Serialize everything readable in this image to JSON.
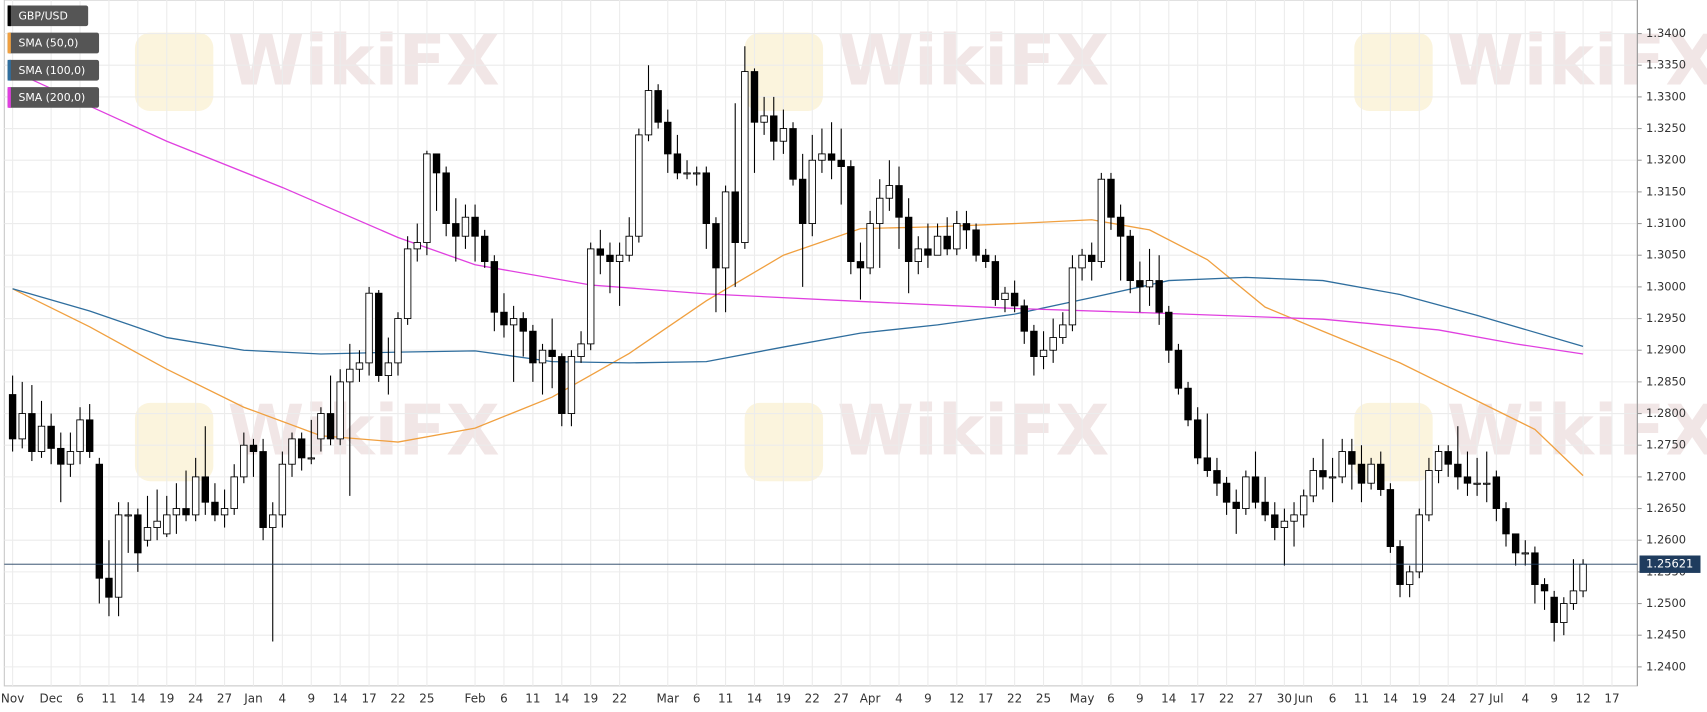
{
  "chart_data": {
    "type": "candlestick",
    "watermark": "WikiFX",
    "grid": true,
    "ylim": [
      1.237,
      1.3453
    ],
    "yticks": [
      {
        "value": 1.24,
        "label": "1.2400"
      },
      {
        "value": 1.245,
        "label": "1.2450"
      },
      {
        "value": 1.25,
        "label": "1.2500"
      },
      {
        "value": 1.255,
        "label": "1.2550"
      },
      {
        "value": 1.26,
        "label": "1.2600"
      },
      {
        "value": 1.265,
        "label": "1.2650"
      },
      {
        "value": 1.27,
        "label": "1.2700"
      },
      {
        "value": 1.275,
        "label": "1.2750"
      },
      {
        "value": 1.28,
        "label": "1.2800"
      },
      {
        "value": 1.285,
        "label": "1.2850"
      },
      {
        "value": 1.29,
        "label": "1.2900"
      },
      {
        "value": 1.295,
        "label": "1.2950"
      },
      {
        "value": 1.3,
        "label": "1.3000"
      },
      {
        "value": 1.305,
        "label": "1.3050"
      },
      {
        "value": 1.31,
        "label": "1.3100"
      },
      {
        "value": 1.315,
        "label": "1.3150"
      },
      {
        "value": 1.32,
        "label": "1.3200"
      },
      {
        "value": 1.325,
        "label": "1.3250"
      },
      {
        "value": 1.33,
        "label": "1.3300"
      },
      {
        "value": 1.335,
        "label": "1.3350"
      },
      {
        "value": 1.34,
        "label": "1.3400"
      }
    ],
    "last_price": 1.25621,
    "categories": [
      "Nov",
      null,
      null,
      null,
      "Dec",
      null,
      null,
      "6",
      null,
      null,
      "11",
      null,
      null,
      "14",
      null,
      null,
      "19",
      null,
      null,
      "24",
      null,
      null,
      "27",
      null,
      null,
      "Jan",
      null,
      null,
      "4",
      null,
      null,
      "9",
      null,
      null,
      "14",
      null,
      null,
      "17",
      null,
      null,
      "22",
      null,
      null,
      "25",
      null,
      null,
      null,
      null,
      "Feb",
      null,
      null,
      "6",
      null,
      null,
      "11",
      null,
      null,
      "14",
      null,
      null,
      "19",
      null,
      null,
      "22",
      null,
      null,
      null,
      null,
      "Mar",
      null,
      null,
      "6",
      null,
      null,
      "11",
      null,
      null,
      "14",
      null,
      null,
      "19",
      null,
      null,
      "22",
      null,
      null,
      "27",
      null,
      null,
      "Apr",
      null,
      null,
      "4",
      null,
      null,
      "9",
      null,
      null,
      "12",
      null,
      null,
      "17",
      null,
      null,
      "22",
      null,
      null,
      "25",
      null,
      null,
      null,
      "May",
      null,
      null,
      "6",
      null,
      null,
      "9",
      null,
      null,
      "14",
      null,
      null,
      "17",
      null,
      null,
      "22",
      null,
      null,
      "27",
      null,
      null,
      "30",
      null,
      "Jun",
      null,
      null,
      "6",
      null,
      null,
      "11",
      null,
      null,
      "14",
      null,
      null,
      "19",
      null,
      null,
      "24",
      null,
      null,
      "27",
      null,
      "Jul",
      null,
      null,
      "4",
      null,
      null,
      "9",
      null,
      null,
      "12",
      null,
      null,
      "17"
    ],
    "series": [
      {
        "name": "GBP/USD",
        "color": "#000000",
        "open": [
          1.283,
          1.276,
          1.28,
          1.274,
          1.278,
          1.2745,
          1.272,
          1.274,
          1.279,
          1.272,
          1.254,
          1.251,
          1.264,
          1.264,
          1.26,
          1.262,
          1.261,
          1.264,
          1.265,
          1.264,
          1.27,
          1.266,
          1.264,
          1.265,
          1.27,
          1.275,
          1.274,
          1.262,
          1.264,
          1.272,
          1.276,
          1.273,
          1.276,
          1.28,
          1.276,
          1.285,
          1.287,
          1.288,
          1.299,
          1.286,
          1.288,
          1.295,
          1.306,
          1.307,
          1.321,
          1.318,
          1.31,
          1.308,
          1.311,
          1.308,
          1.304,
          1.296,
          1.294,
          1.295,
          1.293,
          1.288,
          1.29,
          1.289,
          1.28,
          1.289,
          1.291,
          1.306,
          1.305,
          1.304,
          1.305,
          1.308,
          1.324,
          1.331,
          1.326,
          1.321,
          1.318,
          1.318,
          1.318,
          1.31,
          1.303,
          1.315,
          1.307,
          1.334,
          1.326,
          1.327,
          1.323,
          1.325,
          1.317,
          1.31,
          1.32,
          1.321,
          1.32,
          1.319,
          1.304,
          1.303,
          1.31,
          1.314,
          1.316,
          1.311,
          1.304,
          1.306,
          1.305,
          1.308,
          1.306,
          1.31,
          1.309,
          1.305,
          1.304,
          1.298,
          1.299,
          1.297,
          1.293,
          1.289,
          1.29,
          1.292,
          1.294,
          1.303,
          1.305,
          1.304,
          1.317,
          1.311,
          1.308,
          1.301,
          1.3,
          1.301,
          1.296,
          1.29,
          1.284,
          1.279,
          1.273,
          1.271,
          1.269,
          1.266,
          1.265,
          1.27,
          1.266,
          1.264,
          1.262,
          1.263,
          1.264,
          1.267,
          1.271,
          1.27,
          1.27,
          1.274,
          1.272,
          1.269,
          1.272,
          1.268,
          1.259,
          1.253,
          1.255,
          1.264,
          1.271,
          1.274,
          1.272,
          1.27,
          1.269,
          1.269,
          1.27,
          1.265,
          1.261,
          1.258,
          1.258,
          1.253,
          1.251,
          1.247,
          1.25,
          1.252,
          null,
          null,
          null
        ],
        "high": [
          1.286,
          1.285,
          1.2845,
          1.282,
          1.28,
          1.277,
          1.277,
          1.281,
          1.2815,
          1.273,
          1.26,
          1.266,
          1.266,
          1.265,
          1.267,
          1.268,
          1.267,
          1.269,
          1.271,
          1.273,
          1.278,
          1.269,
          1.268,
          1.272,
          1.277,
          1.276,
          1.276,
          1.266,
          1.274,
          1.277,
          1.277,
          1.279,
          1.281,
          1.286,
          1.287,
          1.291,
          1.29,
          1.3,
          1.2995,
          1.292,
          1.296,
          1.308,
          1.31,
          1.3215,
          1.321,
          1.319,
          1.314,
          1.313,
          1.313,
          1.309,
          1.305,
          1.299,
          1.297,
          1.296,
          1.294,
          1.291,
          1.295,
          1.2895,
          1.29,
          1.293,
          1.307,
          1.309,
          1.307,
          1.307,
          1.311,
          1.325,
          1.335,
          1.332,
          1.328,
          1.324,
          1.32,
          1.319,
          1.319,
          1.311,
          1.316,
          1.329,
          1.338,
          1.3345,
          1.33,
          1.33,
          1.328,
          1.326,
          1.321,
          1.324,
          1.325,
          1.326,
          1.325,
          1.32,
          1.307,
          1.312,
          1.317,
          1.32,
          1.319,
          1.314,
          1.308,
          1.31,
          1.31,
          1.311,
          1.312,
          1.312,
          1.31,
          1.306,
          1.305,
          1.3,
          1.301,
          1.298,
          1.294,
          1.293,
          1.295,
          1.296,
          1.305,
          1.306,
          1.307,
          1.318,
          1.318,
          1.313,
          1.309,
          1.304,
          1.306,
          1.305,
          1.297,
          1.291,
          1.285,
          1.281,
          1.28,
          1.273,
          1.27,
          1.268,
          1.271,
          1.274,
          1.27,
          1.266,
          1.265,
          1.266,
          1.268,
          1.273,
          1.276,
          1.273,
          1.276,
          1.276,
          1.275,
          1.273,
          1.274,
          1.269,
          1.26,
          1.256,
          1.265,
          1.273,
          1.275,
          1.275,
          1.278,
          1.274,
          1.273,
          1.274,
          1.271,
          1.266,
          1.261,
          1.26,
          1.259,
          1.254,
          1.252,
          1.251,
          1.257,
          1.257,
          null,
          null,
          null
        ],
        "low": [
          1.274,
          1.2745,
          1.2725,
          1.273,
          1.272,
          1.266,
          1.27,
          1.272,
          1.273,
          1.25,
          1.248,
          1.248,
          1.258,
          1.255,
          1.259,
          1.26,
          1.2605,
          1.261,
          1.263,
          1.263,
          1.264,
          1.263,
          1.262,
          1.264,
          1.269,
          1.27,
          1.26,
          1.244,
          1.262,
          1.27,
          1.271,
          1.272,
          1.274,
          1.275,
          1.275,
          1.267,
          1.285,
          1.286,
          1.285,
          1.283,
          1.286,
          1.294,
          1.304,
          1.305,
          1.312,
          1.308,
          1.304,
          1.306,
          1.304,
          1.303,
          1.293,
          1.292,
          1.285,
          1.289,
          1.285,
          1.283,
          1.284,
          1.278,
          1.278,
          1.288,
          1.29,
          1.302,
          1.299,
          1.297,
          1.304,
          1.307,
          1.323,
          1.325,
          1.318,
          1.317,
          1.317,
          1.316,
          1.306,
          1.296,
          1.296,
          1.3,
          1.306,
          1.318,
          1.324,
          1.32,
          1.321,
          1.316,
          1.3,
          1.308,
          1.318,
          1.317,
          1.313,
          1.302,
          1.298,
          1.302,
          1.303,
          1.312,
          1.306,
          1.299,
          1.302,
          1.303,
          1.305,
          1.305,
          1.305,
          1.306,
          1.304,
          1.303,
          1.297,
          1.296,
          1.296,
          1.291,
          1.286,
          1.287,
          1.288,
          1.291,
          1.293,
          1.301,
          1.301,
          1.303,
          1.309,
          1.301,
          1.299,
          1.296,
          1.297,
          1.294,
          1.288,
          1.283,
          1.278,
          1.272,
          1.27,
          1.267,
          1.264,
          1.261,
          1.264,
          1.265,
          1.263,
          1.26,
          1.256,
          1.259,
          1.262,
          1.266,
          1.268,
          1.266,
          1.269,
          1.268,
          1.266,
          1.268,
          1.267,
          1.258,
          1.251,
          1.251,
          1.254,
          1.263,
          1.269,
          1.27,
          1.268,
          1.267,
          1.267,
          1.266,
          1.263,
          1.259,
          1.256,
          1.256,
          1.25,
          1.249,
          1.244,
          1.245,
          1.249,
          1.251,
          null,
          null,
          null
        ],
        "close": [
          1.276,
          1.28,
          1.274,
          1.278,
          1.2745,
          1.272,
          1.274,
          1.279,
          1.274,
          1.254,
          1.251,
          1.264,
          1.264,
          1.258,
          1.262,
          1.263,
          1.264,
          1.265,
          1.264,
          1.27,
          1.266,
          1.264,
          1.265,
          1.27,
          1.275,
          1.274,
          1.262,
          1.264,
          1.272,
          1.276,
          1.273,
          1.273,
          1.28,
          1.276,
          1.285,
          1.287,
          1.288,
          1.299,
          1.286,
          1.288,
          1.295,
          1.306,
          1.307,
          1.321,
          1.318,
          1.31,
          1.308,
          1.311,
          1.308,
          1.304,
          1.296,
          1.294,
          1.295,
          1.293,
          1.288,
          1.29,
          1.289,
          1.28,
          1.289,
          1.291,
          1.306,
          1.305,
          1.304,
          1.305,
          1.308,
          1.324,
          1.331,
          1.326,
          1.321,
          1.318,
          1.318,
          1.318,
          1.31,
          1.303,
          1.315,
          1.307,
          1.334,
          1.326,
          1.327,
          1.323,
          1.325,
          1.317,
          1.31,
          1.32,
          1.321,
          1.32,
          1.319,
          1.304,
          1.303,
          1.31,
          1.314,
          1.316,
          1.311,
          1.304,
          1.306,
          1.305,
          1.308,
          1.306,
          1.31,
          1.309,
          1.305,
          1.304,
          1.298,
          1.299,
          1.297,
          1.293,
          1.289,
          1.29,
          1.292,
          1.294,
          1.303,
          1.305,
          1.304,
          1.317,
          1.311,
          1.308,
          1.301,
          1.3,
          1.301,
          1.296,
          1.29,
          1.284,
          1.279,
          1.273,
          1.271,
          1.269,
          1.266,
          1.265,
          1.27,
          1.266,
          1.264,
          1.262,
          1.263,
          1.264,
          1.267,
          1.271,
          1.27,
          1.27,
          1.274,
          1.272,
          1.269,
          1.272,
          1.268,
          1.259,
          1.253,
          1.255,
          1.264,
          1.271,
          1.274,
          1.272,
          1.27,
          1.269,
          1.269,
          1.269,
          1.265,
          1.261,
          1.258,
          1.258,
          1.253,
          1.252,
          1.247,
          1.25,
          1.252,
          1.2562,
          null,
          null,
          null
        ]
      }
    ],
    "overlays": [
      {
        "name": "SMA (50,0)",
        "color": "#f0a040",
        "x": [
          0,
          8,
          16,
          24,
          32,
          40,
          48,
          56,
          64,
          72,
          80,
          88,
          96,
          104,
          112,
          118,
          124,
          130,
          136,
          144,
          152,
          158,
          163
        ],
        "values": [
          1.2997,
          1.2937,
          1.287,
          1.281,
          1.2765,
          1.2755,
          1.2777,
          1.2826,
          1.2895,
          1.2978,
          1.305,
          1.3092,
          1.3095,
          1.31,
          1.3106,
          1.309,
          1.3043,
          1.2968,
          1.293,
          1.288,
          1.282,
          1.2775,
          1.2702
        ]
      },
      {
        "name": "SMA (100,0)",
        "color": "#2f6e9e",
        "x": [
          0,
          8,
          16,
          24,
          32,
          40,
          48,
          56,
          64,
          72,
          80,
          88,
          96,
          104,
          112,
          120,
          128,
          136,
          144,
          152,
          163
        ],
        "values": [
          1.2997,
          1.2962,
          1.292,
          1.29,
          1.2894,
          1.2897,
          1.2899,
          1.2882,
          1.288,
          1.2882,
          1.2905,
          1.2927,
          1.294,
          1.2957,
          1.2983,
          1.301,
          1.3015,
          1.301,
          1.2988,
          1.2955,
          1.2906
        ]
      },
      {
        "name": "SMA (200,0)",
        "color": "#e040e0",
        "x": [
          0,
          16,
          28,
          40,
          48,
          60,
          72,
          88,
          104,
          120,
          136,
          148,
          156,
          163
        ],
        "values": [
          1.3341,
          1.323,
          1.3157,
          1.3078,
          1.3035,
          1.3003,
          1.2989,
          1.2977,
          1.2966,
          1.2958,
          1.2949,
          1.2932,
          1.291,
          1.2894
        ]
      }
    ]
  }
}
